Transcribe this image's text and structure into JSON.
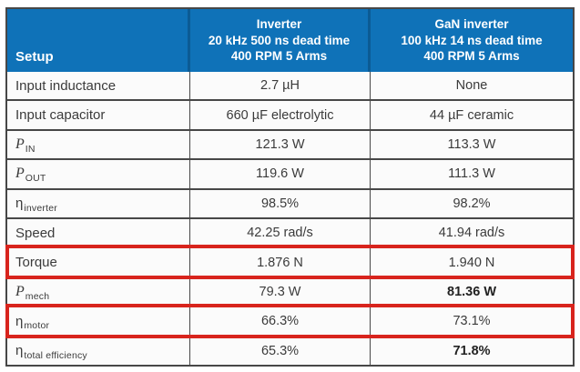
{
  "colors": {
    "header_bg": "#0f72b8",
    "header_divider": "#0b5b94",
    "header_text": "#ffffff",
    "body_text": "#3b3b3b",
    "grid_border": "#474747",
    "row_bg": "#fbfbfb",
    "highlight_red": "#d8241d"
  },
  "table": {
    "header": {
      "setup": {
        "label": "Setup"
      },
      "inverter": {
        "lines": [
          "Inverter",
          "20 kHz 500 ns dead time",
          "400 RPM 5 Arms"
        ]
      },
      "gan_inverter": {
        "lines": [
          "GaN inverter",
          "100 kHz 14 ns dead time",
          "400 RPM 5 Arms"
        ]
      }
    },
    "rows": [
      {
        "label": "Input inductance",
        "sub": "",
        "italic": false,
        "inverter": "2.7 µH",
        "gan": "None",
        "highlighted": false,
        "gan_bold": false
      },
      {
        "label": "Input capacitor",
        "sub": "",
        "italic": false,
        "inverter": "660 µF electrolytic",
        "gan": "44 µF ceramic",
        "highlighted": false,
        "gan_bold": false
      },
      {
        "label": "P",
        "sub": "IN",
        "italic": true,
        "inverter": "121.3 W",
        "gan": "113.3 W",
        "highlighted": false,
        "gan_bold": false
      },
      {
        "label": "P",
        "sub": "OUT",
        "italic": true,
        "inverter": "119.6 W",
        "gan": "111.3 W",
        "highlighted": false,
        "gan_bold": false
      },
      {
        "label": "η",
        "sub": "inverter",
        "italic": false,
        "inverter": "98.5%",
        "gan": "98.2%",
        "highlighted": false,
        "gan_bold": false
      },
      {
        "label": "Speed",
        "sub": "",
        "italic": false,
        "inverter": "42.25 rad/s",
        "gan": "41.94 rad/s",
        "highlighted": false,
        "gan_bold": false
      },
      {
        "label": "Torque",
        "sub": "",
        "italic": false,
        "inverter": "1.876 N",
        "gan": "1.940 N",
        "highlighted": true,
        "gan_bold": false
      },
      {
        "label": "P",
        "sub": "mech",
        "italic": true,
        "inverter": "79.3 W",
        "gan": "81.36 W",
        "highlighted": false,
        "gan_bold": true
      },
      {
        "label": "η",
        "sub": "motor",
        "italic": false,
        "inverter": "66.3%",
        "gan": "73.1%",
        "highlighted": true,
        "gan_bold": false
      },
      {
        "label": "η",
        "sub": "total efficiency",
        "italic": false,
        "inverter": "65.3%",
        "gan": "71.8%",
        "highlighted": false,
        "gan_bold": true
      }
    ]
  }
}
